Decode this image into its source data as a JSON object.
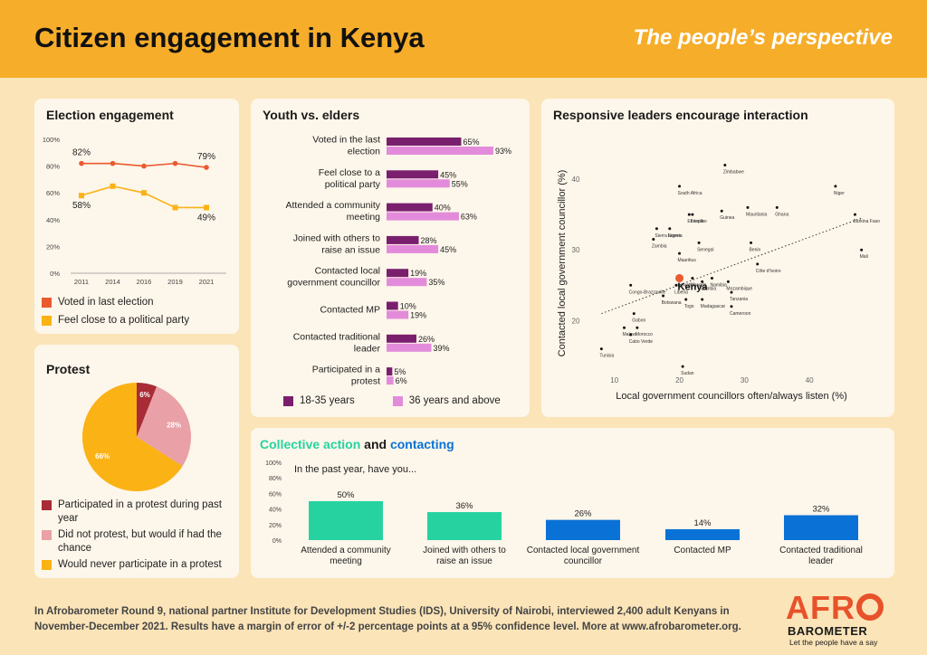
{
  "header": {
    "title": "Citizen engagement in Kenya",
    "subtitle": "The people’s perspective"
  },
  "colors": {
    "orange": "#f6ad2a",
    "red_orange": "#ea5a2f",
    "amber": "#fbb215",
    "dark_purple": "#7a1f6e",
    "light_purple": "#e38bdb",
    "teal": "#26d3a0",
    "blue": "#0a72d6",
    "dark_red": "#a82b35",
    "pink": "#e9a0a6",
    "background": "#fbe4b8",
    "panel": "#fdf6ea"
  },
  "panels": {
    "election": {
      "title": "Election engagement",
      "legend": [
        "Voted in last election",
        "Feel close to a political party"
      ]
    },
    "youth": {
      "title": "Youth vs. elders",
      "legend": [
        "18-35 years",
        "36 years and above"
      ]
    },
    "responsive": {
      "title": "Responsive leaders encourage interaction"
    },
    "protest": {
      "title": "Protest",
      "legend": [
        "Participated in a protest during past year",
        "Did not protest, but would if had the chance",
        "Would never participate in a protest"
      ]
    },
    "collective": {
      "title_part1": "Collective action",
      "title_and": "and",
      "title_part2": "contacting"
    }
  },
  "chart_data": [
    {
      "id": "election",
      "type": "line",
      "title": "Election engagement",
      "x": [
        "2011",
        "2014",
        "2016",
        "2019",
        "2021"
      ],
      "yticks": [
        "0%",
        "20%",
        "40%",
        "60%",
        "80%",
        "100%"
      ],
      "ylim": [
        0,
        100
      ],
      "series": [
        {
          "name": "Voted in last election",
          "values": [
            82,
            82,
            80,
            82,
            79
          ],
          "color": "#ea5a2f",
          "marker": "circle",
          "labels": {
            "0": "82%",
            "4": "79%"
          }
        },
        {
          "name": "Feel close to a political party",
          "values": [
            58,
            65,
            60,
            49,
            49
          ],
          "color": "#fbb215",
          "marker": "square",
          "labels": {
            "0": "58%",
            "4": "49%"
          }
        }
      ]
    },
    {
      "id": "youth",
      "type": "bar",
      "title": "Youth vs. elders",
      "categories": [
        "Voted in the last election",
        "Feel close to a political party",
        "Attended a community meeting",
        "Joined with others to raise an issue",
        "Contacted local government councillor",
        "Contacted MP",
        "Contacted traditional leader",
        "Participated in a protest"
      ],
      "series": [
        {
          "name": "18-35 years",
          "values": [
            65,
            45,
            40,
            28,
            19,
            10,
            26,
            5
          ],
          "color": "#7a1f6e"
        },
        {
          "name": "36 years and above",
          "values": [
            93,
            55,
            63,
            45,
            35,
            19,
            39,
            6
          ],
          "color": "#e38bdb"
        }
      ]
    },
    {
      "id": "responsive",
      "type": "scatter",
      "title": "Responsive leaders encourage interaction",
      "xlabel": "Local government councillors often/always listen (%)",
      "ylabel": "Contacted local government councillor (%)",
      "xticks": [
        10,
        20,
        30,
        40
      ],
      "yticks": [
        20,
        30,
        40
      ],
      "xlim": [
        6,
        50
      ],
      "ylim": [
        12.5,
        45
      ],
      "trend": [
        [
          8,
          21
        ],
        [
          48,
          34.5
        ]
      ],
      "highlight": "Kenya",
      "points": [
        {
          "label": "Zimbabwe",
          "x": 27,
          "y": 42
        },
        {
          "label": "South Africa",
          "x": 20,
          "y": 39
        },
        {
          "label": "Niger",
          "x": 44,
          "y": 39
        },
        {
          "label": "Ethiopia",
          "x": 21.5,
          "y": 35
        },
        {
          "label": "Guinea",
          "x": 26.5,
          "y": 35.5
        },
        {
          "label": "Mauritania",
          "x": 30.5,
          "y": 36
        },
        {
          "label": "Ghana",
          "x": 35,
          "y": 36
        },
        {
          "label": "Burkina Faso",
          "x": 47,
          "y": 35
        },
        {
          "label": "Lesotho",
          "x": 22,
          "y": 35
        },
        {
          "label": "Sierra Leone",
          "x": 16.5,
          "y": 33
        },
        {
          "label": "Nigeria",
          "x": 18.5,
          "y": 33
        },
        {
          "label": "Zambia",
          "x": 16,
          "y": 31.5
        },
        {
          "label": "Senegal",
          "x": 23,
          "y": 31
        },
        {
          "label": "Benin",
          "x": 31,
          "y": 31
        },
        {
          "label": "Mauritius",
          "x": 20,
          "y": 29.5
        },
        {
          "label": "Mali",
          "x": 48,
          "y": 30
        },
        {
          "label": "Côte d'Ivoire",
          "x": 32,
          "y": 28
        },
        {
          "label": "Eswatini",
          "x": 20,
          "y": 26
        },
        {
          "label": "Namibia",
          "x": 25,
          "y": 26
        },
        {
          "label": "Uganda",
          "x": 22,
          "y": 26
        },
        {
          "label": "Gambia",
          "x": 23.5,
          "y": 25.5
        },
        {
          "label": "Mozambique",
          "x": 27.5,
          "y": 25.5
        },
        {
          "label": "Liberia",
          "x": 19.5,
          "y": 25
        },
        {
          "label": "Congo-Brazzaville",
          "x": 12.5,
          "y": 25
        },
        {
          "label": "Botswana",
          "x": 17.5,
          "y": 23.5
        },
        {
          "label": "Madagascar",
          "x": 23.5,
          "y": 23
        },
        {
          "label": "Tanzania",
          "x": 28,
          "y": 24
        },
        {
          "label": "Togo",
          "x": 21,
          "y": 23
        },
        {
          "label": "Cameroon",
          "x": 28,
          "y": 22
        },
        {
          "label": "Gabon",
          "x": 13,
          "y": 21
        },
        {
          "label": "Malawi",
          "x": 11.5,
          "y": 19
        },
        {
          "label": "Morocco",
          "x": 13.5,
          "y": 19
        },
        {
          "label": "Cabo Verde",
          "x": 12.5,
          "y": 18
        },
        {
          "label": "Tunisia",
          "x": 8,
          "y": 16
        },
        {
          "label": "Sudan",
          "x": 20.5,
          "y": 13.5
        },
        {
          "label": "Kenya",
          "x": 20,
          "y": 26
        }
      ]
    },
    {
      "id": "protest",
      "type": "pie",
      "title": "Protest",
      "categories": [
        "Participated in a protest during past year",
        "Did not protest, but would if had the chance",
        "Would never participate in a protest"
      ],
      "values": [
        6,
        28,
        66
      ],
      "colors": [
        "#a82b35",
        "#e9a0a6",
        "#fbb215"
      ]
    },
    {
      "id": "collective",
      "type": "bar",
      "title": "Collective action and contacting",
      "subtitle": "In the past year, have you...",
      "categories": [
        "Attended a community meeting",
        "Joined with others to raise an issue",
        "Contacted local government councillor",
        "Contacted MP",
        "Contacted traditional leader"
      ],
      "values": [
        50,
        36,
        26,
        14,
        32
      ],
      "colors": [
        "#26d3a0",
        "#26d3a0",
        "#0a72d6",
        "#0a72d6",
        "#0a72d6"
      ],
      "yticks": [
        "0%",
        "20%",
        "40%",
        "60%",
        "80%",
        "100%"
      ],
      "ylim": [
        0,
        100
      ]
    }
  ],
  "footer": "In Afrobarometer Round 9, national partner Institute for Development Studies (IDS), University of Nairobi, interviewed 2,400 adult Kenyans in November-December 2021. Results have a margin of error of +/-2 percentage points at a 95% confidence level. More at www.afrobarometer.org.",
  "logo": {
    "afro": "AFR",
    "barometer": "BAROMETER",
    "tagline": "Let the people have a say"
  }
}
